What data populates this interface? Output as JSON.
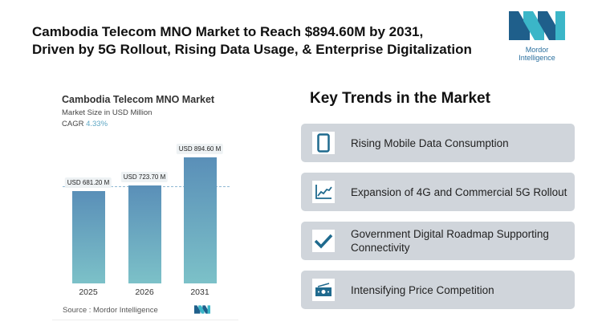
{
  "header": {
    "title_line1": "Cambodia Telecom MNO Market to Reach $894.60M by 2031,",
    "title_line2": "Driven by 5G Rollout, Rising Data Usage, & Enterprise Digitalization",
    "logo_text": "Mordor Intelligence"
  },
  "chart_data": {
    "type": "bar",
    "title": "Cambodia Telecom MNO Market",
    "subtitle": "Market Size in USD Million",
    "cagr_label": "CAGR",
    "cagr_value": "4.33%",
    "categories": [
      "2025",
      "2026",
      "2031"
    ],
    "values": [
      681.2,
      723.7,
      894.6
    ],
    "data_labels": [
      "USD 681.20 M",
      "USD 723.70 M",
      "USD 894.60 M"
    ],
    "source": "Source :  Mordor Intelligence",
    "colors": {
      "bar_top": "#5a8fb8",
      "bar_bottom": "#7cc1c8"
    }
  },
  "trends": {
    "title": "Key Trends in the Market",
    "items": [
      {
        "label": "Rising Mobile Data Consumption",
        "icon": "smartphone-icon"
      },
      {
        "label": "Expansion of 4G and Commercial 5G Rollout",
        "icon": "line-chart-icon"
      },
      {
        "label": "Government Digital Roadmap Supporting Connectivity",
        "icon": "checkmark-icon"
      },
      {
        "label": "Intensifying Price Competition",
        "icon": "money-icon"
      }
    ]
  }
}
